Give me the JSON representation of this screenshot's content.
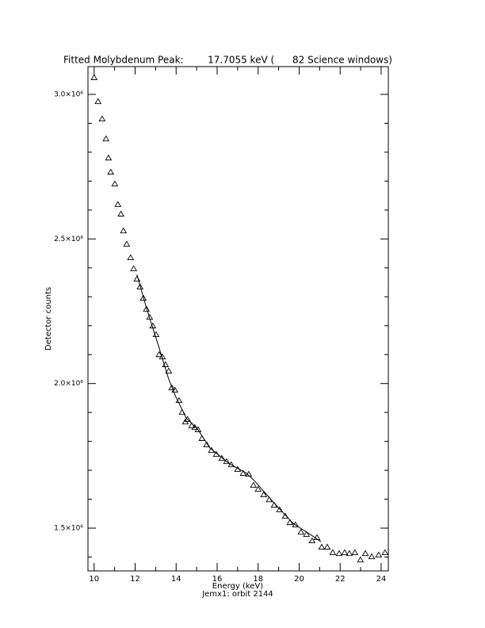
{
  "chart_data": {
    "type": "scatter",
    "title": "Fitted Molybdenum Peak:        17.7055 keV (      82 Science windows)",
    "x_label": "Energy (keV)",
    "y_label": "Detector counts",
    "subtitle": "Jemx1: orbit 2144",
    "xlim": [
      9.7,
      24.35
    ],
    "ylim": [
      1352000,
      3096000
    ],
    "xticks": [
      10,
      12,
      14,
      16,
      18,
      20,
      22,
      24
    ],
    "xminorticks": [
      11,
      13,
      15,
      17,
      19,
      21,
      23
    ],
    "yticks": [
      {
        "value": 1500000,
        "label": "1.5×10⁶"
      },
      {
        "value": 2000000,
        "label": "2.0×10⁶"
      },
      {
        "value": 2500000,
        "label": "2.5×10⁶"
      },
      {
        "value": 3000000,
        "label": "3.0×10⁶"
      }
    ],
    "yminorticks": [
      1400000,
      1600000,
      1700000,
      1800000,
      1900000,
      2100000,
      2200000,
      2300000,
      2400000,
      2600000,
      2700000,
      2800000,
      2900000
    ],
    "series": [
      {
        "marker": "triangle",
        "color": "#000000",
        "x": [
          10.0,
          10.19,
          10.39,
          10.58,
          10.7,
          10.81,
          11.01,
          11.16,
          11.31,
          11.43,
          11.59,
          11.78,
          11.93,
          12.09,
          12.24,
          12.4,
          12.55,
          12.71,
          12.86,
          13.02,
          13.17,
          13.33,
          13.48,
          13.64,
          13.79,
          13.94,
          14.14,
          14.29,
          14.45,
          14.56,
          14.76,
          14.91,
          15.07,
          15.26,
          15.49,
          15.72,
          15.96,
          16.23,
          16.46,
          16.69,
          17.0,
          17.27,
          17.54,
          17.77,
          18.0,
          18.27,
          18.54,
          18.78,
          19.05,
          19.32,
          19.55,
          19.82,
          20.09,
          20.36,
          20.63,
          20.87,
          21.1,
          21.37,
          21.64,
          21.95,
          22.22,
          22.45,
          22.72,
          22.99,
          23.23,
          23.54,
          23.88,
          24.19
        ],
        "values": [
          3058000,
          2975000,
          2915000,
          2846000,
          2780000,
          2731000,
          2690000,
          2619000,
          2586000,
          2528000,
          2482000,
          2435000,
          2397000,
          2361000,
          2334000,
          2295000,
          2257000,
          2229000,
          2199000,
          2169000,
          2100000,
          2092000,
          2065000,
          2043000,
          1985000,
          1977000,
          1941000,
          1900000,
          1867000,
          1876000,
          1854000,
          1848000,
          1840000,
          1810000,
          1788000,
          1769000,
          1755000,
          1741000,
          1730000,
          1719000,
          1703000,
          1689000,
          1686000,
          1648000,
          1634000,
          1615000,
          1598000,
          1579000,
          1563000,
          1541000,
          1519000,
          1511000,
          1486000,
          1478000,
          1456000,
          1467000,
          1434000,
          1434000,
          1415000,
          1412000,
          1415000,
          1412000,
          1415000,
          1390000,
          1412000,
          1401000,
          1407000,
          1415000
        ]
      },
      {
        "marker": "line",
        "color": "#000000",
        "x": [
          12.09,
          12.55,
          13.13,
          13.64,
          13.98,
          14.49,
          15.07,
          15.65,
          16.61,
          17.39,
          17.77,
          18.74,
          19.71,
          20.67,
          21.06
        ],
        "values": [
          2377000,
          2262000,
          2133000,
          2015000,
          1955000,
          1881000,
          1840000,
          1777000,
          1722000,
          1692000,
          1667000,
          1590000,
          1516000,
          1472000,
          1453000
        ]
      }
    ]
  }
}
